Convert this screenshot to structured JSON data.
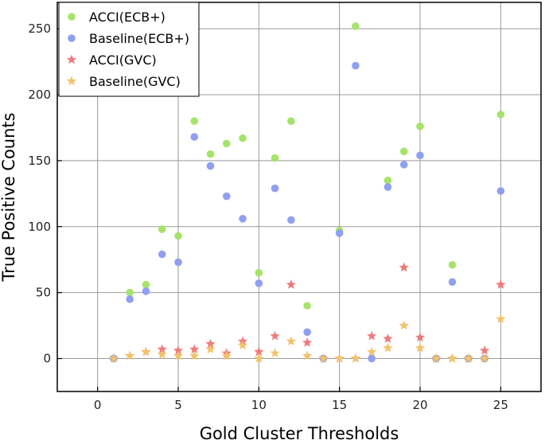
{
  "chart_data": {
    "type": "scatter",
    "title": "",
    "xlabel": "Gold Cluster Thresholds",
    "ylabel": "True Positive Counts",
    "xlim": [
      -2.5,
      27.5
    ],
    "ylim": [
      -25,
      270
    ],
    "xticks": [
      0,
      5,
      10,
      15,
      20,
      25
    ],
    "yticks": [
      0,
      50,
      100,
      150,
      200,
      250
    ],
    "grid": true,
    "legend_position": "top-left",
    "series": [
      {
        "name": "ACCI(ECB+)",
        "marker": "circle",
        "color": "#a6e36a",
        "x": [
          1,
          2,
          3,
          4,
          5,
          6,
          7,
          8,
          9,
          10,
          11,
          12,
          13,
          14,
          15,
          16,
          17,
          18,
          19,
          20,
          21,
          22,
          23,
          24,
          25
        ],
        "y": [
          0,
          50,
          56,
          98,
          93,
          180,
          155,
          163,
          167,
          65,
          152,
          180,
          40,
          0,
          97,
          252,
          0,
          135,
          157,
          176,
          0,
          71,
          0,
          0,
          185
        ]
      },
      {
        "name": "Baseline(ECB+)",
        "marker": "circle",
        "color": "#8f9ff2",
        "x": [
          1,
          2,
          3,
          4,
          5,
          6,
          7,
          8,
          9,
          10,
          11,
          12,
          13,
          14,
          15,
          16,
          17,
          18,
          19,
          20,
          21,
          22,
          23,
          24,
          25
        ],
        "y": [
          0,
          45,
          51,
          79,
          73,
          168,
          146,
          123,
          106,
          57,
          129,
          105,
          20,
          0,
          95,
          222,
          0,
          130,
          147,
          154,
          0,
          58,
          0,
          0,
          127
        ]
      },
      {
        "name": "ACCI(GVC)",
        "marker": "star",
        "color": "#f07a7a",
        "x": [
          1,
          2,
          3,
          4,
          5,
          6,
          7,
          8,
          9,
          10,
          11,
          12,
          13,
          14,
          15,
          16,
          17,
          18,
          19,
          20,
          21,
          22,
          23,
          24,
          25
        ],
        "y": [
          0,
          2,
          5,
          7,
          6,
          7,
          11,
          4,
          13,
          5,
          17,
          56,
          12,
          0,
          0,
          0,
          17,
          15,
          69,
          16,
          0,
          0,
          0,
          6,
          56
        ]
      },
      {
        "name": "Baseline(GVC)",
        "marker": "star",
        "color": "#f4c26a",
        "x": [
          1,
          2,
          3,
          4,
          5,
          6,
          7,
          8,
          9,
          10,
          11,
          12,
          13,
          14,
          15,
          16,
          17,
          18,
          19,
          20,
          21,
          22,
          23,
          24,
          25
        ],
        "y": [
          0,
          2,
          5,
          3,
          2,
          2,
          7,
          2,
          10,
          0,
          4,
          13,
          2,
          0,
          0,
          0,
          5,
          8,
          25,
          8,
          0,
          0,
          0,
          0,
          30
        ]
      }
    ]
  }
}
